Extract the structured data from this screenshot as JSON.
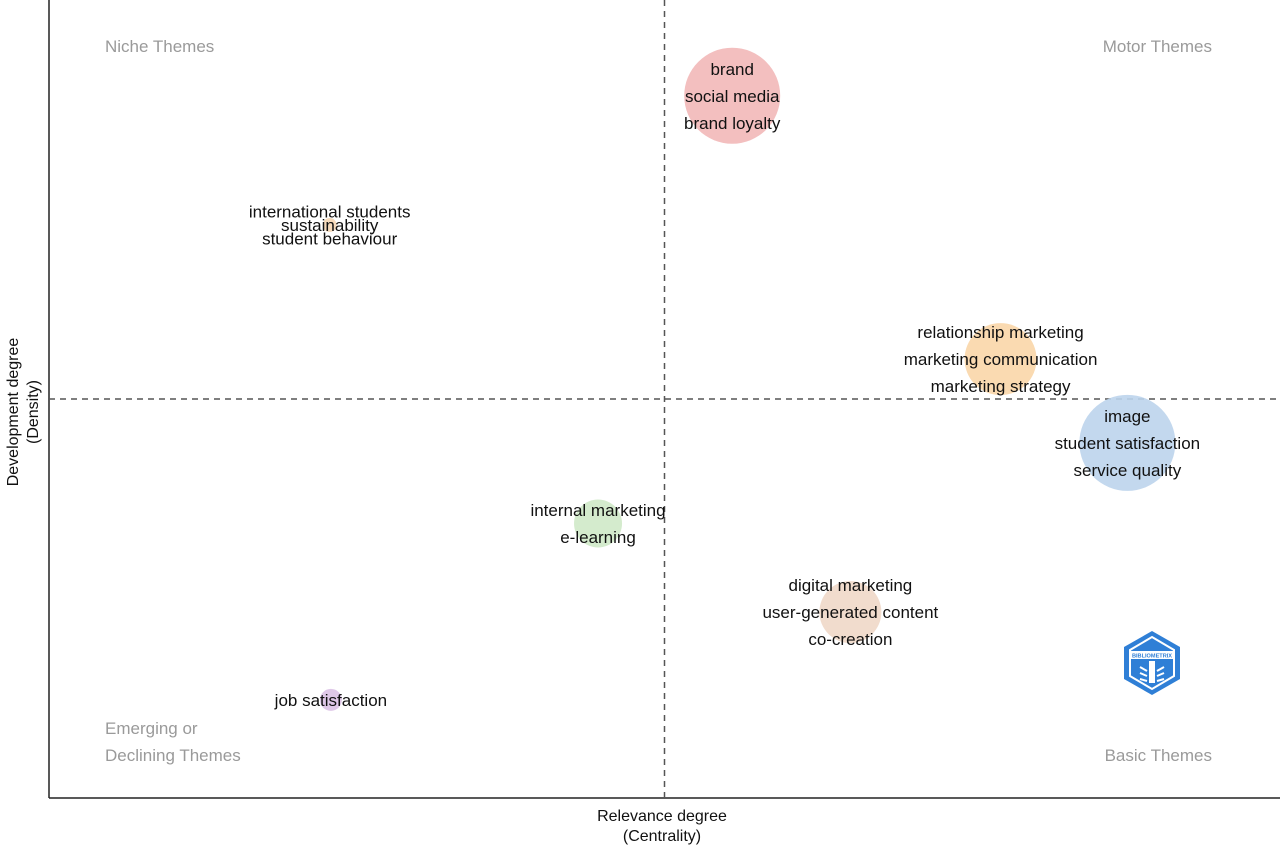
{
  "chart_data": {
    "type": "scatter",
    "title": "",
    "xlabel": "Relevance degree",
    "xlabel_sub": "(Centrality)",
    "ylabel": "Development degree",
    "ylabel_sub": "(Density)",
    "xlim": [
      0,
      100
    ],
    "ylim": [
      0,
      100
    ],
    "x_divider": 50,
    "y_divider": 50,
    "quadrants": {
      "top_left": "Niche Themes",
      "top_right": "Motor Themes",
      "bottom_left": [
        "Emerging or",
        "Declining Themes"
      ],
      "bottom_right": "Basic Themes"
    },
    "clusters": [
      {
        "labels": [
          "brand",
          "social media",
          "brand loyalty"
        ],
        "x": 55.5,
        "y": 88.0,
        "size": 48,
        "color": "#f2b8b8"
      },
      {
        "labels": [
          "international students",
          "sustainability",
          "student behaviour"
        ],
        "x": 22.8,
        "y": 71.8,
        "size": 7,
        "color": "#f5d6b4"
      },
      {
        "labels": [
          "relationship marketing",
          "marketing communication",
          "marketing strategy"
        ],
        "x": 77.3,
        "y": 55.0,
        "size": 36,
        "color": "#f9d6a8"
      },
      {
        "labels": [
          "image",
          "student satisfaction",
          "service quality"
        ],
        "x": 87.6,
        "y": 44.5,
        "size": 48,
        "color": "#bcd4ec"
      },
      {
        "labels": [
          "internal marketing",
          "e-learning"
        ],
        "x": 44.6,
        "y": 34.4,
        "size": 24,
        "color": "#cfe9c8"
      },
      {
        "labels": [
          "digital marketing",
          "user-generated content",
          "co-creation"
        ],
        "x": 65.1,
        "y": 23.3,
        "size": 31,
        "color": "#efd8c8"
      },
      {
        "labels": [
          "job satisfaction"
        ],
        "x": 22.9,
        "y": 12.3,
        "size": 11,
        "color": "#dbc2e6"
      }
    ],
    "logo_text": "BIBLIOMETRIX",
    "logo_color": "#2f7fd6"
  }
}
